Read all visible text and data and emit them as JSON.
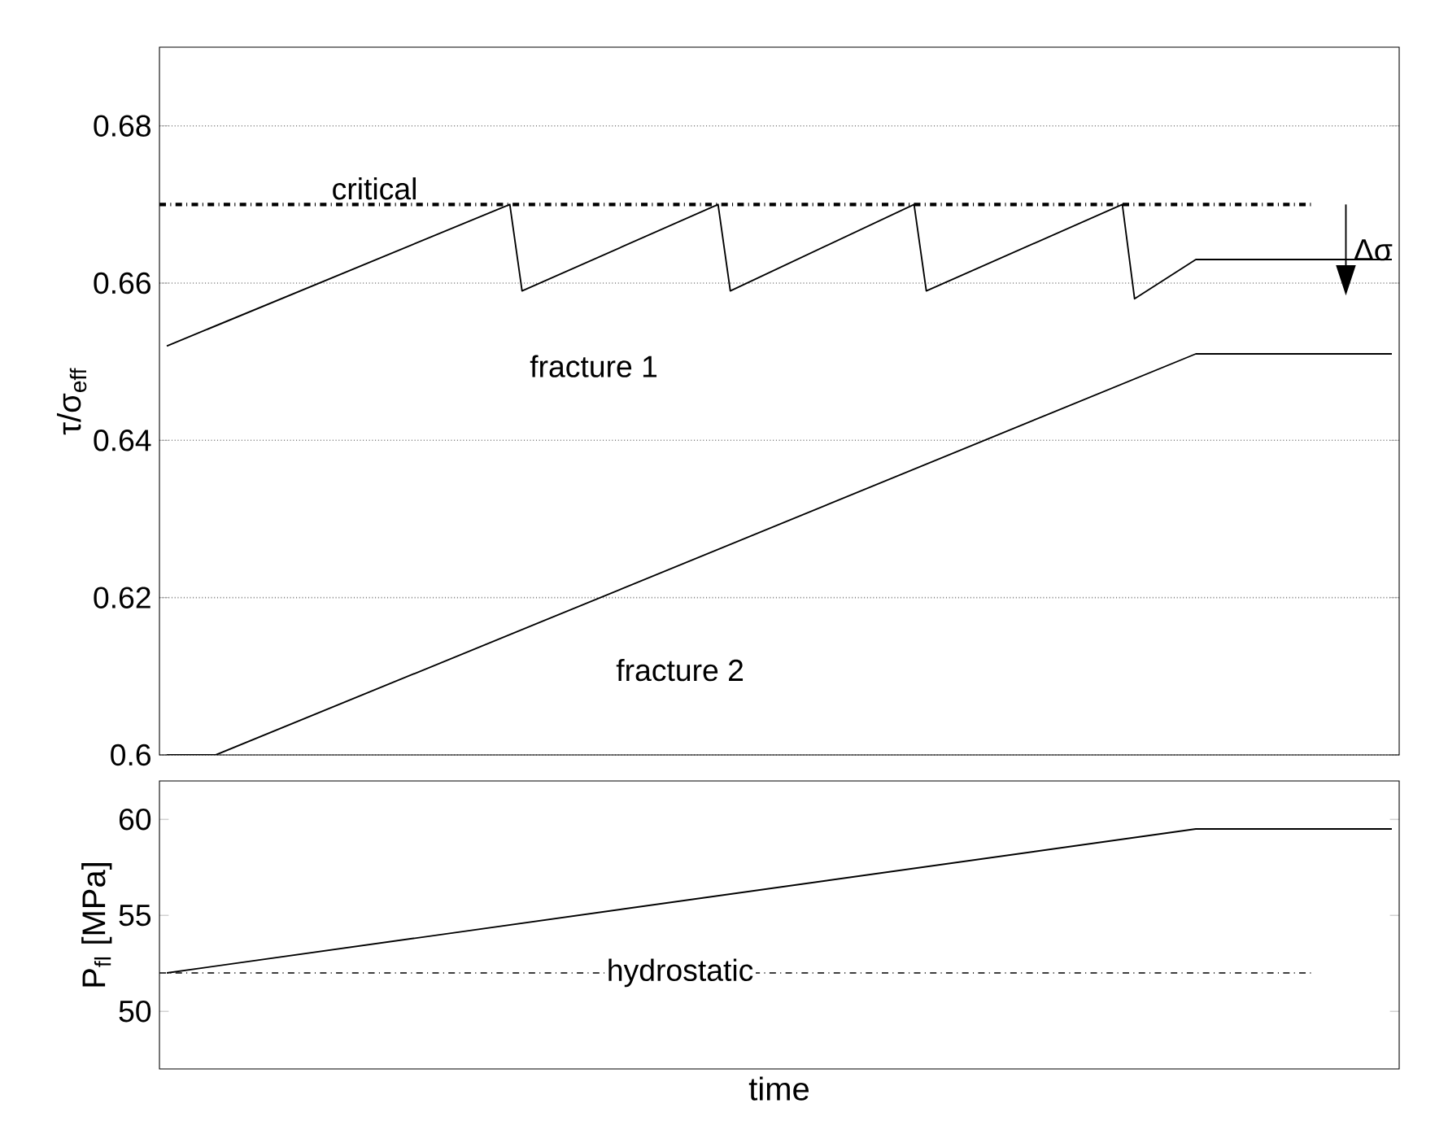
{
  "chart_data": [
    {
      "type": "line",
      "ylabel": "τ/σ$_{eff}$",
      "ylim": [
        0.6,
        0.69
      ],
      "yticks": [
        0.6,
        0.62,
        0.64,
        0.66,
        0.68
      ],
      "grid": "y",
      "tick_labels": "y",
      "categories": [
        null,
        null,
        null,
        null,
        null,
        null,
        null,
        null,
        null,
        null,
        null,
        null,
        null,
        null,
        null,
        null,
        null,
        null,
        null,
        null,
        null,
        null,
        null,
        null,
        null,
        null,
        null,
        null,
        null,
        null,
        null,
        null,
        null,
        null,
        null,
        null,
        null,
        null,
        null,
        null,
        null,
        null,
        null,
        null,
        null,
        null,
        null,
        null,
        null,
        null,
        null,
        null,
        null,
        null,
        null,
        null,
        null,
        null,
        null,
        null,
        null,
        null,
        null,
        null,
        null,
        null,
        null,
        null,
        null,
        null,
        null,
        null,
        null,
        null,
        null,
        null,
        null,
        null,
        null,
        null,
        null,
        null,
        null,
        null,
        null,
        null,
        null,
        null,
        null,
        null,
        null,
        null,
        null,
        null,
        null,
        null,
        null,
        null,
        null,
        null,
        null
      ],
      "series": [
        {
          "name": "fracture 1",
          "color": "#000000",
          "values": [
            0.652,
            null,
            null,
            null,
            null,
            null,
            null,
            null,
            null,
            null,
            null,
            null,
            null,
            null,
            null,
            null,
            null,
            null,
            null,
            null,
            null,
            null,
            null,
            null,
            null,
            null,
            null,
            null,
            0.67,
            0.659,
            null,
            null,
            null,
            null,
            null,
            null,
            null,
            null,
            null,
            null,
            null,
            null,
            null,
            null,
            null,
            0.67,
            0.659,
            null,
            null,
            null,
            null,
            null,
            null,
            null,
            null,
            null,
            null,
            null,
            null,
            null,
            null,
            0.67,
            0.659,
            null,
            null,
            null,
            null,
            null,
            null,
            null,
            null,
            null,
            null,
            null,
            null,
            null,
            null,
            null,
            0.67,
            0.658,
            null,
            null,
            null,
            null,
            0.663,
            null,
            null,
            null,
            null,
            null,
            null,
            null,
            null,
            null,
            null,
            null,
            null,
            null,
            null,
            null,
            0.663
          ]
        },
        {
          "name": "fracture 2",
          "color": "#000000",
          "values": [
            0.6,
            null,
            null,
            null,
            0.6,
            null,
            null,
            null,
            null,
            null,
            null,
            null,
            null,
            null,
            null,
            null,
            null,
            null,
            null,
            null,
            null,
            null,
            null,
            null,
            null,
            null,
            null,
            null,
            null,
            null,
            null,
            null,
            null,
            null,
            null,
            null,
            null,
            null,
            null,
            null,
            null,
            null,
            null,
            null,
            null,
            null,
            null,
            null,
            null,
            null,
            null,
            null,
            null,
            null,
            null,
            null,
            null,
            null,
            null,
            null,
            null,
            null,
            null,
            null,
            null,
            null,
            null,
            null,
            null,
            null,
            null,
            null,
            null,
            null,
            null,
            null,
            null,
            null,
            null,
            null,
            null,
            null,
            null,
            null,
            0.651,
            null,
            null,
            null,
            null,
            null,
            null,
            null,
            null,
            null,
            null,
            null,
            null,
            null,
            null,
            null,
            0.651
          ]
        }
      ],
      "ref_lines": [
        {
          "axis": "y",
          "value": 0.67,
          "label": "critical",
          "color": "#000000",
          "line_style": "dashdot"
        }
      ],
      "annotations": [
        "Δσ"
      ]
    },
    {
      "type": "line",
      "xlabel": "time",
      "ylabel": "P$_{fl}$ [MPa]",
      "ylim": [
        47,
        62
      ],
      "yticks": [
        50,
        55,
        60
      ],
      "tick_labels": "y",
      "categories": [
        null,
        null,
        null,
        null,
        null,
        null,
        null,
        null,
        null,
        null,
        null,
        null,
        null,
        null,
        null,
        null,
        null,
        null,
        null,
        null,
        null,
        null,
        null,
        null,
        null,
        null,
        null,
        null,
        null,
        null,
        null,
        null,
        null,
        null,
        null,
        null,
        null,
        null,
        null,
        null,
        null,
        null,
        null,
        null,
        null,
        null,
        null,
        null,
        null,
        null,
        null,
        null,
        null,
        null,
        null,
        null,
        null,
        null,
        null,
        null,
        null,
        null,
        null,
        null,
        null,
        null,
        null,
        null,
        null,
        null,
        null,
        null,
        null,
        null,
        null,
        null,
        null,
        null,
        null,
        null,
        null,
        null,
        null,
        null,
        null,
        null,
        null,
        null,
        null,
        null,
        null,
        null,
        null,
        null,
        null,
        null,
        null,
        null,
        null,
        null,
        null
      ],
      "series": [
        {
          "color": "#000000",
          "values": [
            52,
            null,
            null,
            null,
            null,
            null,
            null,
            null,
            null,
            null,
            null,
            null,
            null,
            null,
            null,
            null,
            null,
            null,
            null,
            null,
            null,
            null,
            null,
            null,
            null,
            null,
            null,
            null,
            null,
            null,
            null,
            null,
            null,
            null,
            null,
            null,
            null,
            null,
            null,
            null,
            null,
            null,
            null,
            null,
            null,
            null,
            null,
            null,
            null,
            null,
            null,
            null,
            null,
            null,
            null,
            null,
            null,
            null,
            null,
            null,
            null,
            null,
            null,
            null,
            null,
            null,
            null,
            null,
            null,
            null,
            null,
            null,
            null,
            null,
            null,
            null,
            null,
            null,
            null,
            null,
            null,
            null,
            null,
            null,
            59.5,
            null,
            null,
            null,
            null,
            null,
            null,
            null,
            null,
            null,
            null,
            null,
            null,
            null,
            null,
            null,
            59.5
          ]
        }
      ],
      "ref_lines": [
        {
          "axis": "y",
          "value": 52,
          "label": "hydrostatic",
          "color": "#000000",
          "line_style": "dashdot"
        }
      ]
    }
  ]
}
